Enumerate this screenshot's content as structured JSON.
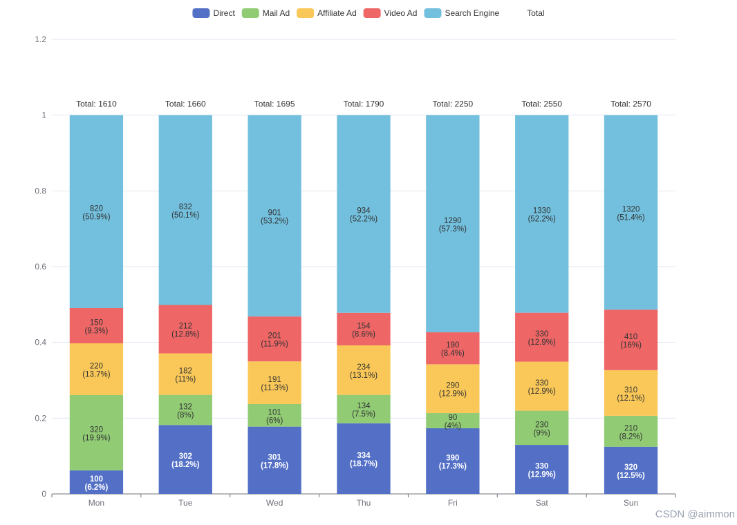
{
  "chart_data": {
    "type": "bar",
    "stacked": true,
    "normalized": true,
    "categories": [
      "Mon",
      "Tue",
      "Wed",
      "Thu",
      "Fri",
      "Sat",
      "Sun"
    ],
    "series": [
      {
        "name": "Direct",
        "color": "#5470c6",
        "label_color": "#ffffff",
        "values": [
          100,
          302,
          301,
          334,
          390,
          330,
          320
        ],
        "percent_labels": [
          "6.2%",
          "18.2%",
          "17.8%",
          "18.7%",
          "17.3%",
          "12.9%",
          "12.5%"
        ]
      },
      {
        "name": "Mail Ad",
        "color": "#91cc75",
        "label_color": "#333333",
        "values": [
          320,
          132,
          101,
          134,
          90,
          230,
          210
        ],
        "percent_labels": [
          "19.9%",
          "8%",
          "6%",
          "7.5%",
          "4%",
          "9%",
          "8.2%"
        ]
      },
      {
        "name": "Affiliate Ad",
        "color": "#fac858",
        "label_color": "#333333",
        "values": [
          220,
          182,
          191,
          234,
          290,
          330,
          310
        ],
        "percent_labels": [
          "13.7%",
          "11%",
          "11.3%",
          "13.1%",
          "12.9%",
          "12.9%",
          "12.1%"
        ]
      },
      {
        "name": "Video Ad",
        "color": "#ee6666",
        "label_color": "#333333",
        "values": [
          150,
          212,
          201,
          154,
          190,
          330,
          410
        ],
        "percent_labels": [
          "9.3%",
          "12.8%",
          "11.9%",
          "8.6%",
          "8.4%",
          "12.9%",
          "16%"
        ]
      },
      {
        "name": "Search Engine",
        "color": "#73c0de",
        "label_color": "#333333",
        "values": [
          820,
          832,
          901,
          934,
          1290,
          1330,
          1320
        ],
        "percent_labels": [
          "50.9%",
          "50.1%",
          "53.2%",
          "52.2%",
          "57.3%",
          "52.2%",
          "51.4%"
        ]
      }
    ],
    "totals": [
      1610,
      1660,
      1695,
      1790,
      2250,
      2550,
      2570
    ],
    "total_series_name": "Total",
    "total_label_prefix": "Total: ",
    "ylim": [
      0,
      1.2
    ],
    "yticks": [
      "0",
      "0.2",
      "0.4",
      "0.6",
      "0.8",
      "1",
      "1.2"
    ],
    "grid": true,
    "legend_position": "top-center"
  },
  "watermark": "CSDN @aimmon"
}
